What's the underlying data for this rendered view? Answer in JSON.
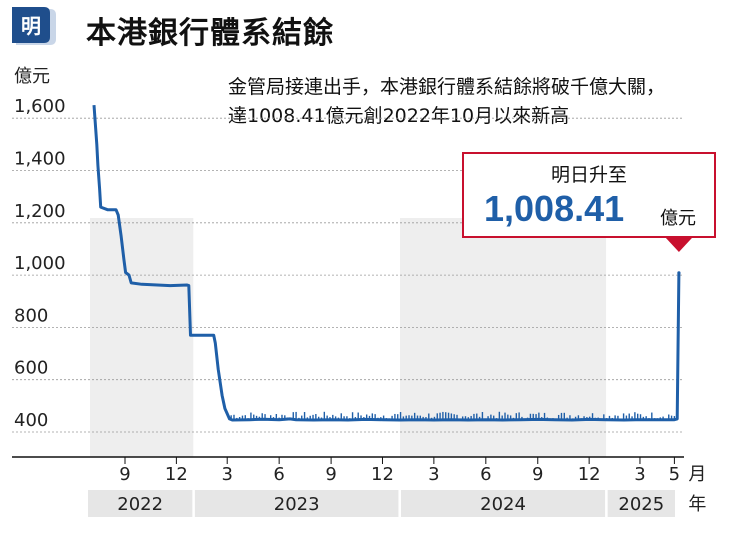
{
  "header": {
    "logo_char": "明",
    "title": "本港銀行體系結餘"
  },
  "annotation": {
    "line1": "金管局接連出手，本港銀行體系結餘將破千億大關，",
    "line2": "達1008.41億元創2022年10月以來新高"
  },
  "callout": {
    "label": "明日升至",
    "value": "1,008.41",
    "unit": "億元"
  },
  "colors": {
    "line": "#1f5fa8",
    "accent": "#c8102e",
    "shade": "#eeeeee"
  },
  "chart_data": {
    "type": "line",
    "ylabel": "億元",
    "ylim": [
      400,
      1650
    ],
    "yticks": [
      400,
      600,
      800,
      1000,
      1200,
      1400,
      1600
    ],
    "ytick_labels": [
      "400",
      "600",
      "800",
      "1,000",
      "1,200",
      "1,400",
      "1,600"
    ],
    "grid": true,
    "month_ticks": [
      {
        "label": "9",
        "date": "2022-09-01"
      },
      {
        "label": "12",
        "date": "2022-12-01"
      },
      {
        "label": "3",
        "date": "2023-03-01"
      },
      {
        "label": "6",
        "date": "2023-06-01"
      },
      {
        "label": "9",
        "date": "2023-09-01"
      },
      {
        "label": "12",
        "date": "2023-12-01"
      },
      {
        "label": "3",
        "date": "2024-03-01"
      },
      {
        "label": "6",
        "date": "2024-06-01"
      },
      {
        "label": "9",
        "date": "2024-09-01"
      },
      {
        "label": "12",
        "date": "2024-12-01"
      },
      {
        "label": "3",
        "date": "2025-03-01"
      },
      {
        "label": "5",
        "date": "2025-05-01"
      }
    ],
    "month_suffix": "月",
    "year_bands": [
      {
        "label": "2022",
        "start": "2022-07-01",
        "end": "2022-12-31"
      },
      {
        "label": "2023",
        "start": "2023-01-01",
        "end": "2023-12-31"
      },
      {
        "label": "2024",
        "start": "2024-01-01",
        "end": "2024-12-31"
      },
      {
        "label": "2025",
        "start": "2025-01-01",
        "end": "2025-05-09"
      }
    ],
    "year_suffix": "年",
    "shaded_periods": [
      {
        "start": "2022-07-01",
        "end": "2022-12-31"
      },
      {
        "start": "2024-01-01",
        "end": "2024-12-31"
      }
    ],
    "series": [
      {
        "points": [
          [
            "2022-07-08",
            1650
          ],
          [
            "2022-07-13",
            1500
          ],
          [
            "2022-07-15",
            1420
          ],
          [
            "2022-07-18",
            1330
          ],
          [
            "2022-07-20",
            1260
          ],
          [
            "2022-08-01",
            1250
          ],
          [
            "2022-08-16",
            1250
          ],
          [
            "2022-08-20",
            1230
          ],
          [
            "2022-08-25",
            1150
          ],
          [
            "2022-08-30",
            1060
          ],
          [
            "2022-09-02",
            1010
          ],
          [
            "2022-09-08",
            1000
          ],
          [
            "2022-09-12",
            970
          ],
          [
            "2022-10-01",
            965
          ],
          [
            "2022-11-20",
            960
          ],
          [
            "2022-12-20",
            962
          ],
          [
            "2022-12-23",
            960
          ],
          [
            "2022-12-26",
            770
          ],
          [
            "2023-01-20",
            770
          ],
          [
            "2023-02-05",
            770
          ],
          [
            "2023-02-08",
            740
          ],
          [
            "2023-02-13",
            640
          ],
          [
            "2023-02-20",
            540
          ],
          [
            "2023-02-25",
            490
          ],
          [
            "2023-03-05",
            450
          ],
          [
            "2023-03-10",
            446
          ],
          [
            "2023-04-10",
            447
          ],
          [
            "2023-05-05",
            449
          ],
          [
            "2023-06-01",
            447
          ],
          [
            "2023-06-20",
            450
          ],
          [
            "2023-07-01",
            447
          ],
          [
            "2023-08-01",
            446
          ],
          [
            "2023-09-01",
            447
          ],
          [
            "2023-10-01",
            446
          ],
          [
            "2023-11-01",
            448
          ],
          [
            "2023-12-01",
            447
          ],
          [
            "2024-01-01",
            446
          ],
          [
            "2024-02-01",
            447
          ],
          [
            "2024-03-01",
            446
          ],
          [
            "2024-04-01",
            447
          ],
          [
            "2024-05-01",
            446
          ],
          [
            "2024-06-01",
            447
          ],
          [
            "2024-07-01",
            446
          ],
          [
            "2024-08-01",
            447
          ],
          [
            "2024-09-01",
            448
          ],
          [
            "2024-10-01",
            447
          ],
          [
            "2024-11-01",
            446
          ],
          [
            "2024-12-01",
            448
          ],
          [
            "2025-01-01",
            447
          ],
          [
            "2025-02-01",
            446
          ],
          [
            "2025-03-01",
            447
          ],
          [
            "2025-04-01",
            447
          ],
          [
            "2025-05-01",
            447
          ],
          [
            "2025-05-06",
            450
          ],
          [
            "2025-05-09",
            1008.41
          ]
        ]
      }
    ]
  }
}
